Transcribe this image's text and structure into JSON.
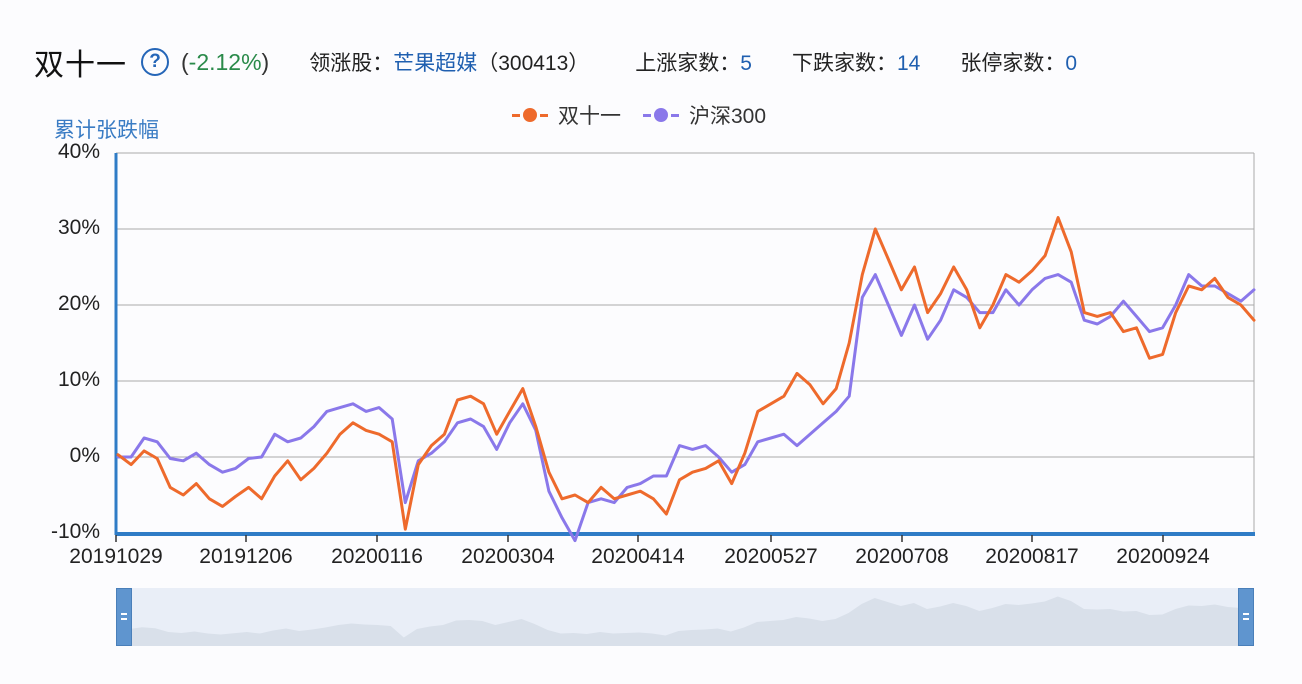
{
  "header": {
    "title": "双十一",
    "help_icon": "question-circle-icon",
    "change_open": "(",
    "change_value": "-2.12%",
    "change_close": ")",
    "leader_label": "领涨股：",
    "leader_name": "芒果超媒",
    "leader_code": "（300413）",
    "up_label": "上涨家数：",
    "up_value": "5",
    "down_label": "下跌家数：",
    "down_value": "14",
    "limit_label": "张停家数：",
    "limit_value": "0"
  },
  "colors": {
    "series1": "#ee6a2c",
    "series2": "#8a78ea",
    "axis": "#2f7cc6",
    "grid": "#aaaaaa",
    "change_negative": "#2a8a4a",
    "link": "#1f5fb0"
  },
  "chart_data": {
    "type": "line",
    "title": "",
    "xlabel": "",
    "ylabel": "累计张跌幅",
    "ylim": [
      -10,
      40
    ],
    "yticks": [
      "40%",
      "30%",
      "20%",
      "10%",
      "0%",
      "-10%"
    ],
    "ytick_values": [
      40,
      30,
      20,
      10,
      0,
      -10
    ],
    "xticks": [
      "20191029",
      "20191206",
      "20200116",
      "20200304",
      "20200414",
      "20200527",
      "20200708",
      "20200817",
      "20200924"
    ],
    "grid": true,
    "legend_position": "top",
    "series": [
      {
        "name": "双十一",
        "values": [
          0.3,
          -1.0,
          0.8,
          -0.2,
          -4.0,
          -5.0,
          -3.5,
          -5.5,
          -6.5,
          -5.2,
          -4.0,
          -5.5,
          -2.5,
          -0.5,
          -3.0,
          -1.5,
          0.5,
          3.0,
          4.5,
          3.5,
          3.0,
          2.0,
          -9.5,
          -1.0,
          1.5,
          3.0,
          7.5,
          8.0,
          7.0,
          3.0,
          6.0,
          9.0,
          4.0,
          -2.0,
          -5.5,
          -5.0,
          -6.0,
          -4.0,
          -5.5,
          -5.0,
          -4.5,
          -5.5,
          -7.5,
          -3.0,
          -2.0,
          -1.5,
          -0.5,
          -3.5,
          0.5,
          6.0,
          7.0,
          8.0,
          11.0,
          9.5,
          7.0,
          9.0,
          15.0,
          24.0,
          30.0,
          26.0,
          22.0,
          25.0,
          19.0,
          21.5,
          25.0,
          22.0,
          17.0,
          20.0,
          24.0,
          23.0,
          24.5,
          26.5,
          31.5,
          27.0,
          19.0,
          18.5,
          19.0,
          16.5,
          17.0,
          13.0,
          13.5,
          19.0,
          22.5,
          22.0,
          23.5,
          21.0,
          20.0,
          18.0
        ],
        "color": "#ee6a2c"
      },
      {
        "name": "沪深300",
        "values": [
          0.0,
          0.0,
          2.5,
          2.0,
          -0.2,
          -0.5,
          0.5,
          -1.0,
          -2.0,
          -1.5,
          -0.2,
          0.0,
          3.0,
          2.0,
          2.5,
          4.0,
          6.0,
          6.5,
          7.0,
          6.0,
          6.5,
          5.0,
          -6.0,
          -0.5,
          0.5,
          2.0,
          4.5,
          5.0,
          4.0,
          1.0,
          4.5,
          7.0,
          3.5,
          -4.5,
          -8.0,
          -11.0,
          -6.0,
          -5.5,
          -6.0,
          -4.0,
          -3.5,
          -2.5,
          -2.5,
          1.5,
          1.0,
          1.5,
          0.0,
          -2.0,
          -1.0,
          2.0,
          2.5,
          3.0,
          1.5,
          3.0,
          4.5,
          6.0,
          8.0,
          21.0,
          24.0,
          20.0,
          16.0,
          20.0,
          15.5,
          18.0,
          22.0,
          21.0,
          19.0,
          19.0,
          22.0,
          20.0,
          22.0,
          23.5,
          24.0,
          23.0,
          18.0,
          17.5,
          18.5,
          20.5,
          18.5,
          16.5,
          17.0,
          20.0,
          24.0,
          22.5,
          22.5,
          21.5,
          20.5,
          22.0
        ],
        "color": "#8a78ea"
      }
    ]
  },
  "navigator": {
    "left_handle_icon": "drag-handle-icon",
    "right_handle_icon": "drag-handle-icon"
  }
}
